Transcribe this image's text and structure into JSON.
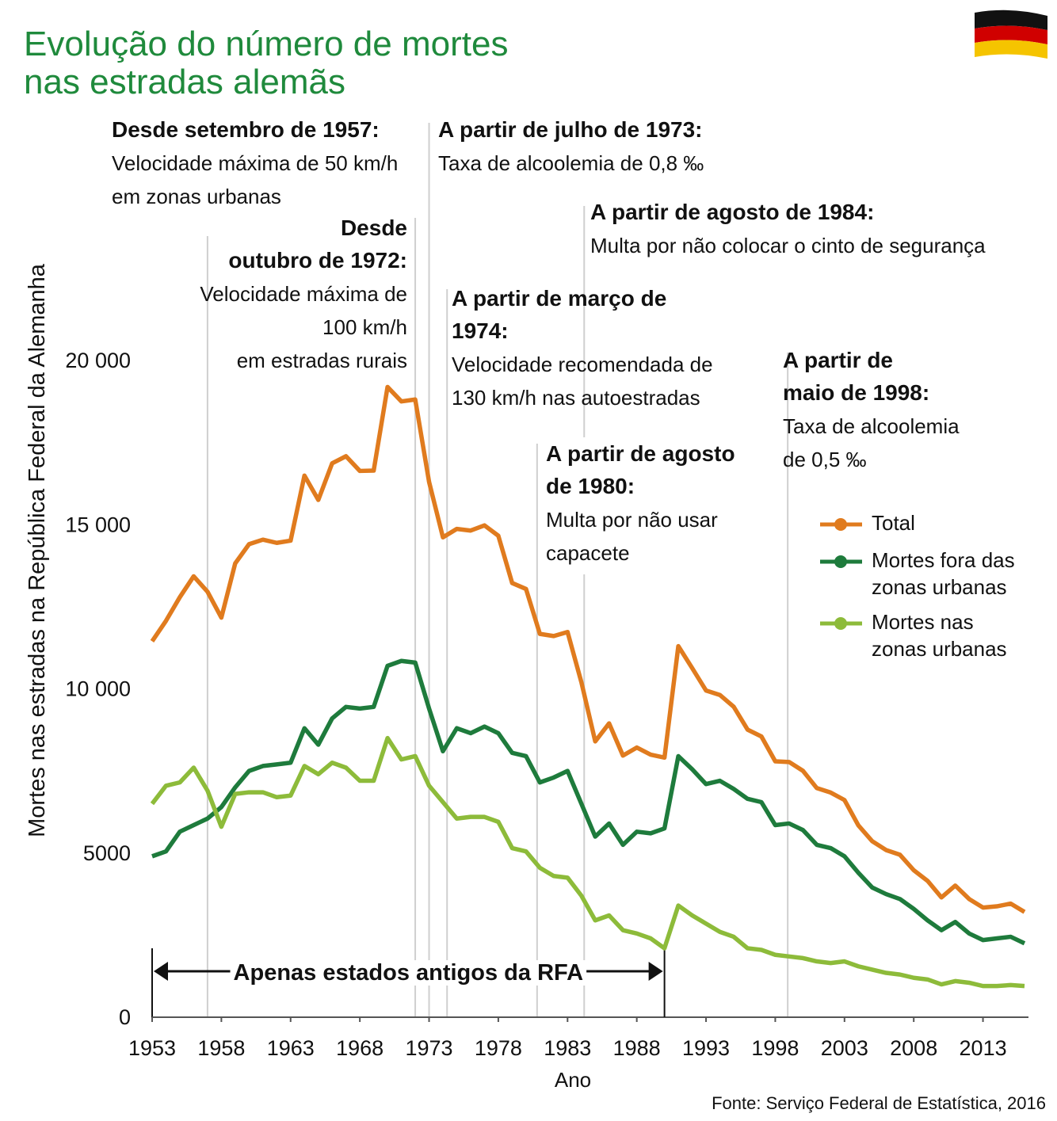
{
  "chart_data": {
    "type": "line",
    "title": [
      "Evolução do número de mortes",
      "nas estradas alemãs"
    ],
    "ylabel": "Mortes nas estradas na República Federal da Alemanha",
    "xlabel": "Ano",
    "source": "Fonte: Serviço Federal de Estatística, 2016",
    "x": [
      1953,
      1954,
      1955,
      1956,
      1957,
      1958,
      1959,
      1960,
      1961,
      1962,
      1963,
      1964,
      1965,
      1966,
      1967,
      1968,
      1969,
      1970,
      1971,
      1972,
      1973,
      1974,
      1975,
      1976,
      1977,
      1978,
      1979,
      1980,
      1981,
      1982,
      1983,
      1984,
      1985,
      1986,
      1987,
      1988,
      1989,
      1990,
      1991,
      1992,
      1993,
      1994,
      1995,
      1996,
      1997,
      1998,
      1999,
      2000,
      2001,
      2002,
      2003,
      2004,
      2005,
      2006,
      2007,
      2008,
      2009,
      2010,
      2011,
      2012,
      2013,
      2014,
      2015,
      2016
    ],
    "series": [
      {
        "name": "Total",
        "color": "#e07b1e",
        "values": [
          11449,
          12071,
          12791,
          13427,
          12957,
          12169,
          13822,
          14406,
          14543,
          14445,
          14513,
          16494,
          15753,
          16868,
          17084,
          16636,
          16646,
          19193,
          18753,
          18811,
          16302,
          14614,
          14870,
          14820,
          14978,
          14662,
          13222,
          13041,
          11674,
          11608,
          11732,
          10199,
          8400,
          8948,
          7967,
          8213,
          7995,
          7906,
          11300,
          10631,
          9949,
          9814,
          9454,
          8758,
          8549,
          7792,
          7772,
          7503,
          6977,
          6842,
          6613,
          5842,
          5361,
          5091,
          4949,
          4477,
          4152,
          3648,
          4009,
          3600,
          3339,
          3377,
          3459,
          3206
        ]
      },
      {
        "name": "Mortes fora das zonas urbanas",
        "color": "#1e7b3c",
        "values": [
          4900,
          5050,
          5650,
          5850,
          6050,
          6400,
          7000,
          7500,
          7650,
          7700,
          7750,
          8800,
          8300,
          9100,
          9450,
          9400,
          9450,
          10700,
          10850,
          10800,
          9400,
          8100,
          8800,
          8650,
          8850,
          8650,
          8050,
          7950,
          7150,
          7300,
          7500,
          6500,
          5500,
          5900,
          5250,
          5650,
          5600,
          5750,
          7950,
          7550,
          7100,
          7200,
          6950,
          6650,
          6550,
          5850,
          5900,
          5700,
          5250,
          5150,
          4900,
          4400,
          3950,
          3750,
          3600,
          3300,
          2950,
          2650,
          2900,
          2550,
          2350,
          2400,
          2450,
          2250
        ]
      },
      {
        "name": "Mortes nas zonas urbanas",
        "color": "#8dbb3a",
        "values": [
          6500,
          7050,
          7150,
          7600,
          6900,
          5800,
          6800,
          6850,
          6850,
          6700,
          6750,
          7650,
          7400,
          7750,
          7600,
          7200,
          7200,
          8500,
          7850,
          7950,
          7050,
          6550,
          6050,
          6100,
          6100,
          5950,
          5150,
          5050,
          4550,
          4300,
          4250,
          3700,
          2950,
          3100,
          2650,
          2550,
          2400,
          2100,
          3400,
          3100,
          2850,
          2600,
          2450,
          2100,
          2050,
          1900,
          1850,
          1800,
          1700,
          1650,
          1700,
          1550,
          1450,
          1350,
          1300,
          1200,
          1150,
          1000,
          1100,
          1050,
          950,
          950,
          980,
          950
        ]
      }
    ],
    "xlim": [
      1953,
      2016
    ],
    "xticks": [
      1953,
      1958,
      1963,
      1968,
      1973,
      1978,
      1983,
      1988,
      1993,
      1998,
      2003,
      2008,
      2013
    ],
    "ylim": [
      0,
      20000
    ],
    "yticks": [
      0,
      5000,
      {
        "value": 10000,
        "label": "10 000"
      },
      {
        "value": 15000,
        "label": "15 000"
      },
      {
        "value": 20000,
        "label": "20 000"
      }
    ],
    "range_annotation": {
      "text": "Apenas estados antigos da RFA",
      "x": [
        1953,
        1990
      ]
    },
    "annotations": [
      {
        "x": 1957,
        "title": [
          "Desde setembro de 1957:"
        ],
        "text": [
          "Velocidade máxima de 50 km/h",
          "em zonas urbanas"
        ]
      },
      {
        "x": 1972,
        "title": [
          "Desde",
          "outubro de 1972:"
        ],
        "text": [
          "Velocidade máxima de",
          "100 km/h",
          "em estradas rurais"
        ]
      },
      {
        "x": 1973,
        "title": [
          "A partir de julho de 1973:"
        ],
        "text": [
          "Taxa de alcoolemia de 0,8 ‰"
        ]
      },
      {
        "x": 1984.2,
        "title": [
          "A partir de agosto de 1984:"
        ],
        "text": [
          "Multa por não colocar o cinto de segurança"
        ]
      },
      {
        "x": 1974.3,
        "title": [
          "A partir de março de",
          "1974:"
        ],
        "text": [
          "Velocidade recomendada de",
          "130 km/h nas autoestradas"
        ]
      },
      {
        "x": 1980.8,
        "title": [
          "A partir de agosto",
          "de 1980:"
        ],
        "text": [
          "Multa por não usar",
          "capacete"
        ]
      },
      {
        "x": 1998.9,
        "title": [
          "A partir de",
          "maio de 1998:"
        ],
        "text": [
          "Taxa de alcoolemia",
          "de 0,5 ‰"
        ]
      }
    ]
  }
}
